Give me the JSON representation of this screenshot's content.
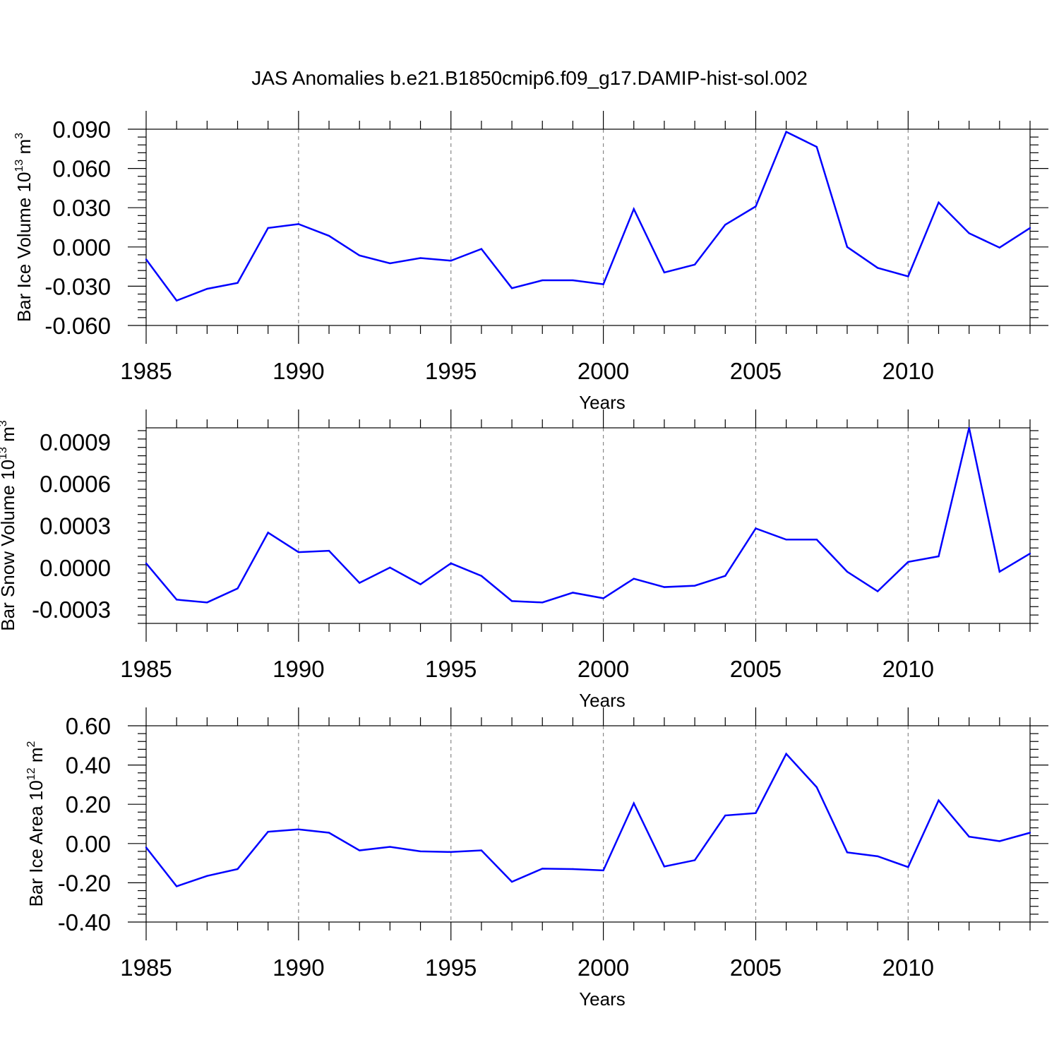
{
  "figure": {
    "title": "JAS Anomalies b.e21.B1850cmip6.f09_g17.DAMIP-hist-sol.002",
    "line_color": "#0000ff",
    "grid_color": "#888888"
  },
  "chart_data": [
    {
      "type": "line",
      "title": "",
      "ylabel": {
        "pre": "Bar Ice Volume 10",
        "sup1": "13",
        "mid": " m",
        "sup2": "3"
      },
      "xlabel": "Years",
      "xlim": [
        1985,
        2014
      ],
      "ylim": [
        -0.06,
        0.09
      ],
      "xticks": [
        1985,
        1990,
        1995,
        2000,
        2005,
        2010
      ],
      "xtick_labels": [
        "1985",
        "1990",
        "1995",
        "2000",
        "2005",
        "2010"
      ],
      "yticks": [
        -0.06,
        -0.03,
        0.0,
        0.03,
        0.06,
        0.09
      ],
      "ytick_labels": [
        "-0.060",
        "-0.030",
        "0.000",
        "0.030",
        "0.060",
        "0.090"
      ],
      "x": [
        1985,
        1986,
        1987,
        1988,
        1989,
        1990,
        1991,
        1992,
        1993,
        1994,
        1995,
        1996,
        1997,
        1998,
        1999,
        2000,
        2001,
        2002,
        2003,
        2004,
        2005,
        2006,
        2007,
        2008,
        2009,
        2010,
        2011,
        2012,
        2013,
        2014
      ],
      "series": [
        {
          "name": "Bar Ice Volume",
          "values": [
            -0.0095,
            -0.041,
            -0.032,
            -0.0275,
            0.0145,
            0.0175,
            0.0085,
            -0.0065,
            -0.0125,
            -0.0085,
            -0.0105,
            -0.0015,
            -0.0315,
            -0.0255,
            -0.0255,
            -0.0285,
            0.029,
            -0.0195,
            -0.0135,
            0.017,
            0.031,
            0.088,
            0.0765,
            0.0,
            -0.016,
            -0.0225,
            0.034,
            0.0105,
            -0.0005,
            0.0145
          ]
        }
      ]
    },
    {
      "type": "line",
      "title": "",
      "ylabel": {
        "pre": "Bar Snow Volume 10",
        "sup1": "13",
        "mid": " m",
        "sup2": "3"
      },
      "xlabel": "Years",
      "xlim": [
        1985,
        2014
      ],
      "ylim": [
        -0.0004,
        0.001
      ],
      "xticks": [
        1985,
        1990,
        1995,
        2000,
        2005,
        2010
      ],
      "xtick_labels": [
        "1985",
        "1990",
        "1995",
        "2000",
        "2005",
        "2010"
      ],
      "yticks": [
        -0.0003,
        0.0,
        0.0003,
        0.0006,
        0.0009
      ],
      "ytick_labels": [
        "-0.0003",
        "0.0000",
        "0.0003",
        "0.0006",
        "0.0009"
      ],
      "x": [
        1985,
        1986,
        1987,
        1988,
        1989,
        1990,
        1991,
        1992,
        1993,
        1994,
        1995,
        1996,
        1997,
        1998,
        1999,
        2000,
        2001,
        2002,
        2003,
        2004,
        2005,
        2006,
        2007,
        2008,
        2009,
        2010,
        2011,
        2012,
        2013,
        2014
      ],
      "series": [
        {
          "name": "Bar Snow Volume",
          "values": [
            3e-05,
            -0.00023,
            -0.00025,
            -0.00015,
            0.00025,
            0.00011,
            0.00012,
            -0.00011,
            0.0,
            -0.00012,
            3e-05,
            -6e-05,
            -0.00024,
            -0.00025,
            -0.00018,
            -0.00022,
            -8e-05,
            -0.00014,
            -0.00013,
            -6e-05,
            0.00028,
            0.0002,
            0.0002,
            -3e-05,
            -0.00017,
            4e-05,
            8e-05,
            0.001,
            -3e-05,
            0.0001
          ]
        }
      ]
    },
    {
      "type": "line",
      "title": "",
      "ylabel": {
        "pre": "Bar Ice Area 10",
        "sup1": "12",
        "mid": " m",
        "sup2": "2"
      },
      "xlabel": "Years",
      "xlim": [
        1985,
        2014
      ],
      "ylim": [
        -0.4,
        0.6
      ],
      "xticks": [
        1985,
        1990,
        1995,
        2000,
        2005,
        2010
      ],
      "xtick_labels": [
        "1985",
        "1990",
        "1995",
        "2000",
        "2005",
        "2010"
      ],
      "yticks": [
        -0.4,
        -0.2,
        0.0,
        0.2,
        0.4,
        0.6
      ],
      "ytick_labels": [
        "-0.40",
        "-0.20",
        "0.00",
        "0.20",
        "0.40",
        "0.60"
      ],
      "x": [
        1985,
        1986,
        1987,
        1988,
        1989,
        1990,
        1991,
        1992,
        1993,
        1994,
        1995,
        1996,
        1997,
        1998,
        1999,
        2000,
        2001,
        2002,
        2003,
        2004,
        2005,
        2006,
        2007,
        2008,
        2009,
        2010,
        2011,
        2012,
        2013,
        2014
      ],
      "series": [
        {
          "name": "Bar Ice Area",
          "values": [
            -0.02,
            -0.218,
            -0.165,
            -0.13,
            0.06,
            0.072,
            0.055,
            -0.035,
            -0.017,
            -0.04,
            -0.043,
            -0.035,
            -0.195,
            -0.128,
            -0.13,
            -0.137,
            0.205,
            -0.117,
            -0.085,
            0.143,
            0.155,
            0.457,
            0.287,
            -0.045,
            -0.065,
            -0.12,
            0.22,
            0.035,
            0.012,
            0.055
          ]
        }
      ]
    }
  ]
}
